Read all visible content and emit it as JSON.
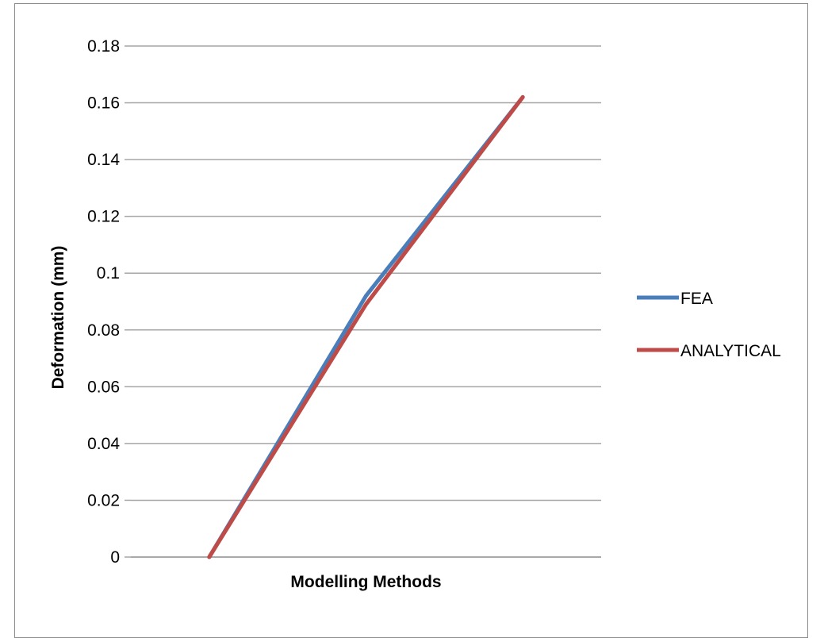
{
  "chart_data": {
    "type": "line",
    "xlabel": "Modelling Methods",
    "ylabel": "Deformation (mm)",
    "ylim": [
      0,
      0.18
    ],
    "yticks": [
      0,
      0.02,
      0.04,
      0.06,
      0.08,
      0.1,
      0.12,
      0.14,
      0.16,
      0.18
    ],
    "ytick_labels": [
      "0",
      "0.02",
      "0.04",
      "0.06",
      "0.08",
      "0.1",
      "0.12",
      "0.14",
      "0.16",
      "0.18"
    ],
    "categories": [
      "1",
      "2",
      "3"
    ],
    "show_category_labels": false,
    "grid": true,
    "legend_position": "right",
    "series": [
      {
        "name": "FEA",
        "values": [
          0,
          0.092,
          0.162
        ],
        "color": "#4a7ebb"
      },
      {
        "name": "ANALYTICAL",
        "values": [
          0,
          0.089,
          0.162
        ],
        "color": "#be4b48"
      }
    ]
  }
}
